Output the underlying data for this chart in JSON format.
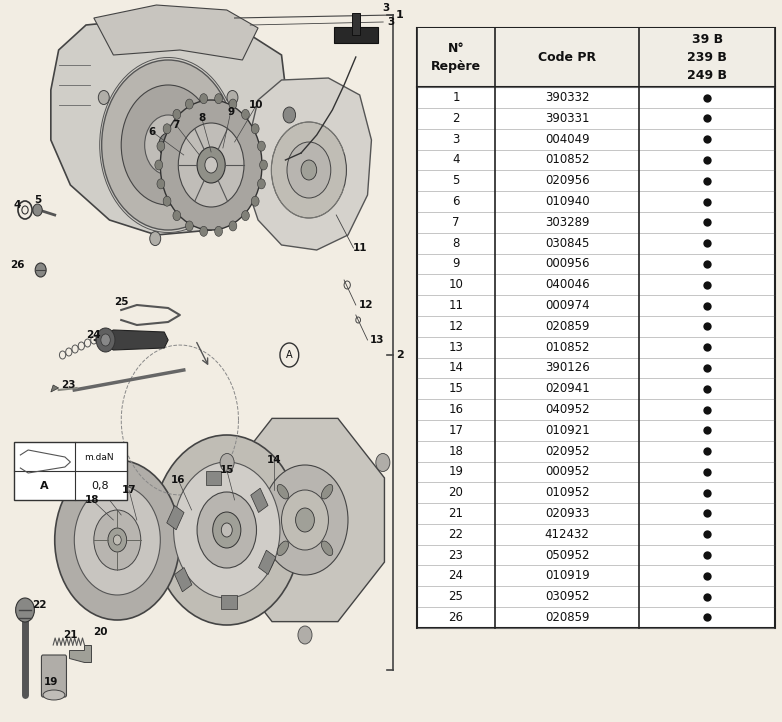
{
  "bg_color": "#f2ede3",
  "table_bg": "#ffffff",
  "table_border": "#222222",
  "header_row": [
    "N°\nRepère",
    "Code PR",
    "39 B\n239 B\n249 B"
  ],
  "rows": [
    [
      "1",
      "390332",
      true
    ],
    [
      "2",
      "390331",
      true
    ],
    [
      "3",
      "004049",
      true
    ],
    [
      "4",
      "010852",
      true
    ],
    [
      "5",
      "020956",
      true
    ],
    [
      "6",
      "010940",
      true
    ],
    [
      "7",
      "303289",
      true
    ],
    [
      "8",
      "030845",
      true
    ],
    [
      "9",
      "000956",
      true
    ],
    [
      "10",
      "040046",
      true
    ],
    [
      "11",
      "000974",
      true
    ],
    [
      "12",
      "020859",
      true
    ],
    [
      "13",
      "010852",
      true
    ],
    [
      "14",
      "390126",
      true
    ],
    [
      "15",
      "020941",
      true
    ],
    [
      "16",
      "040952",
      true
    ],
    [
      "17",
      "010921",
      true
    ],
    [
      "18",
      "020952",
      true
    ],
    [
      "19",
      "000952",
      true
    ],
    [
      "20",
      "010952",
      true
    ],
    [
      "21",
      "020933",
      true
    ],
    [
      "22",
      "412432",
      true
    ],
    [
      "23",
      "050952",
      true
    ],
    [
      "24",
      "010919",
      true
    ],
    [
      "25",
      "030952",
      true
    ],
    [
      "26",
      "020859",
      true
    ]
  ],
  "diagram_bg": "#f2ede3",
  "dot_color": "#111111",
  "dot_size": 6,
  "text_color": "#111111",
  "font_size_header": 9,
  "font_size_row": 8.5,
  "font_size_label": 7.5
}
